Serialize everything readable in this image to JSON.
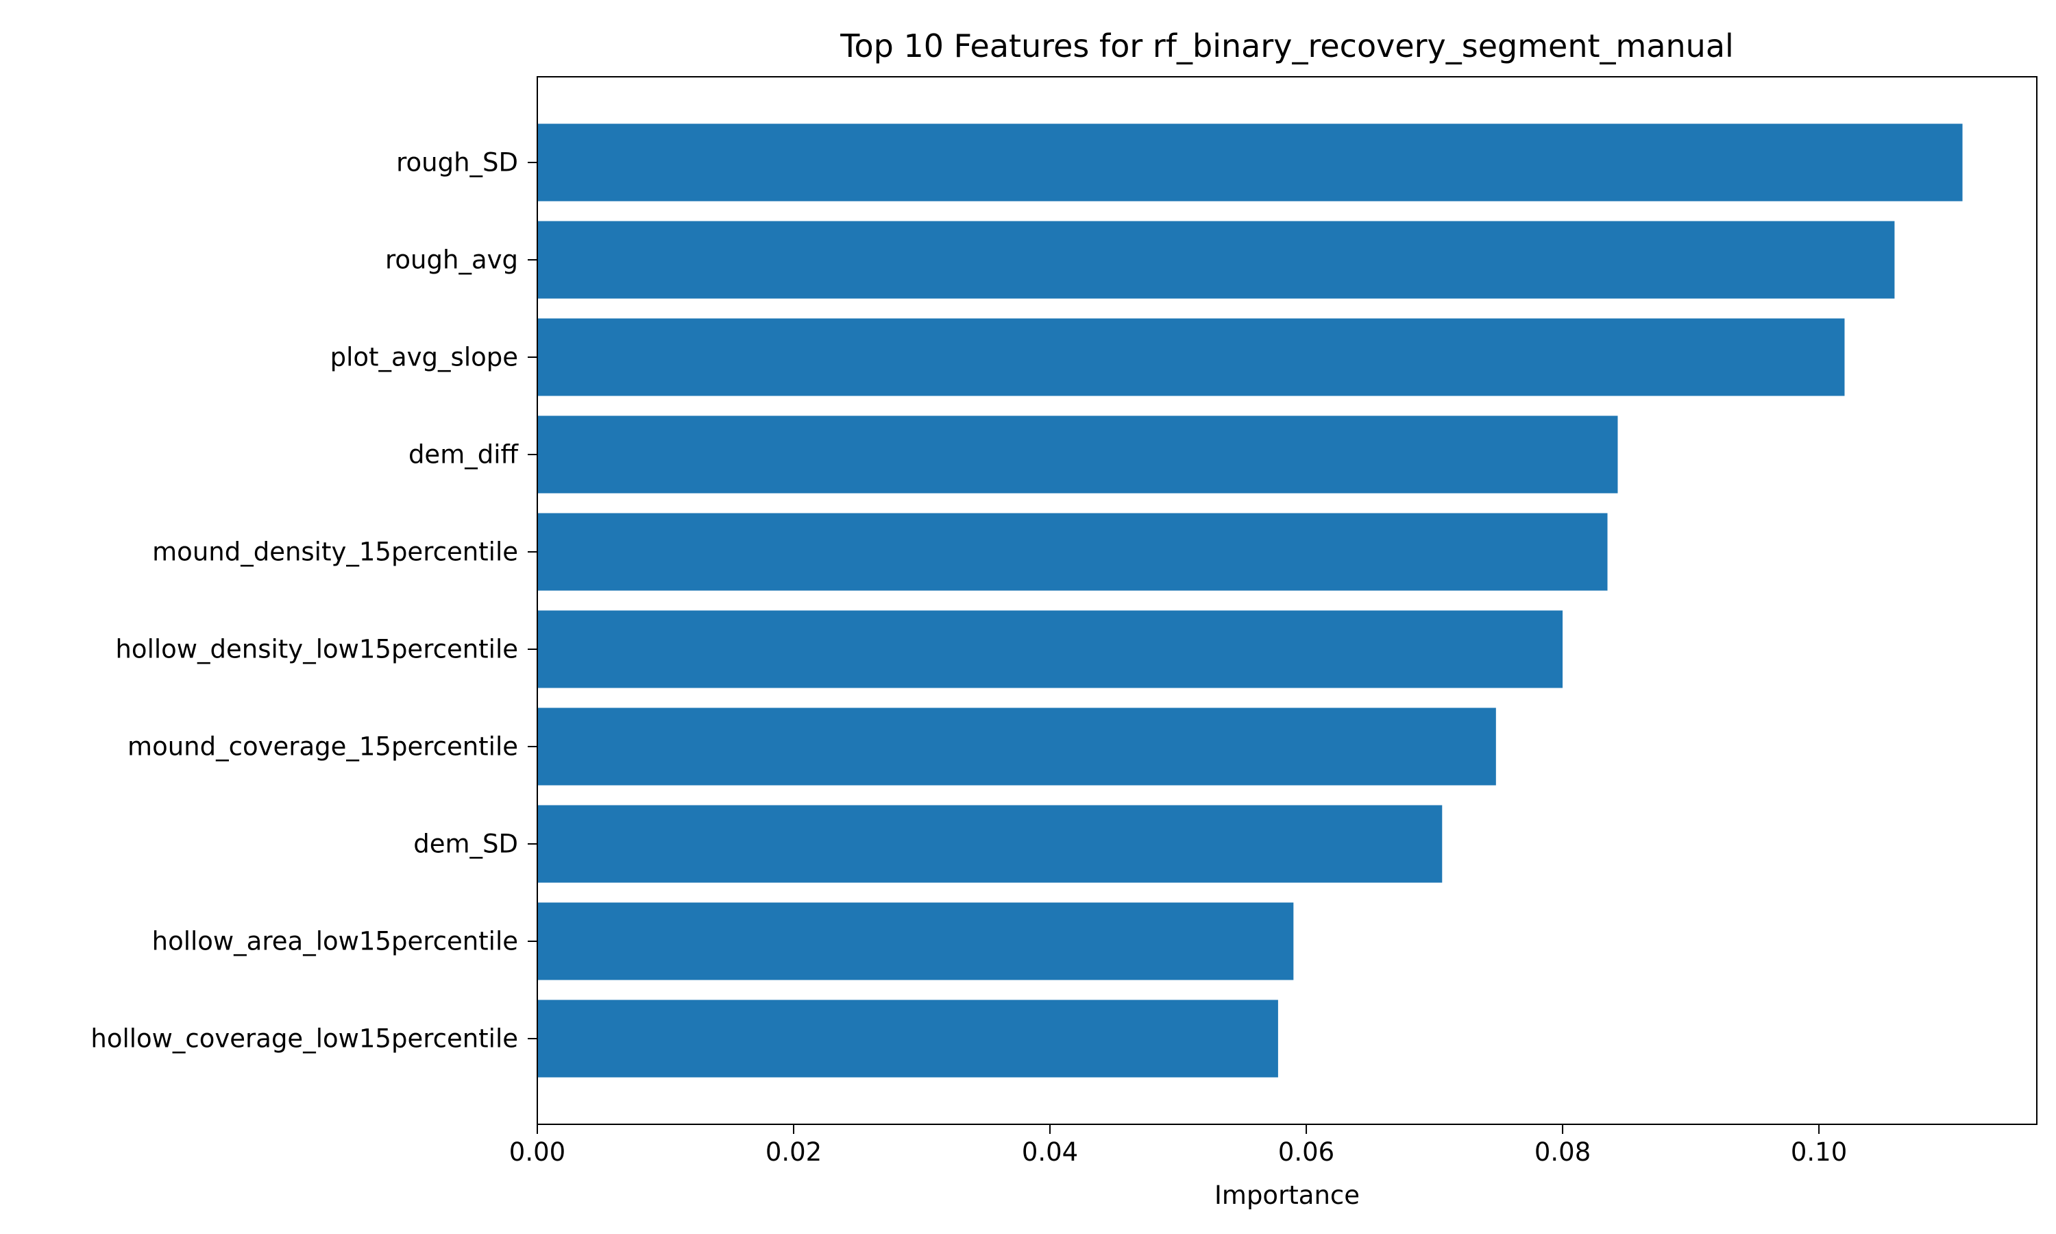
{
  "chart_data": {
    "type": "bar",
    "orientation": "horizontal",
    "title": "Top 10 Features for rf_binary_recovery_segment_manual",
    "xlabel": "Importance",
    "ylabel": "",
    "categories": [
      "rough_SD",
      "rough_avg",
      "plot_avg_slope",
      "dem_diff",
      "mound_density_15percentile",
      "hollow_density_low15percentile",
      "mound_coverage_15percentile",
      "dem_SD",
      "hollow_area_low15percentile",
      "hollow_coverage_low15percentile"
    ],
    "values": [
      0.1112,
      0.1059,
      0.102,
      0.0843,
      0.0835,
      0.08,
      0.0748,
      0.0706,
      0.059,
      0.0578
    ],
    "xlim": [
      0,
      0.117
    ],
    "xticks": [
      0.0,
      0.02,
      0.04,
      0.06,
      0.08,
      0.1
    ],
    "xtick_labels": [
      "0.00",
      "0.02",
      "0.04",
      "0.06",
      "0.08",
      "0.10"
    ],
    "bar_color": "#1f77b4",
    "grid": false,
    "legend": "none"
  }
}
